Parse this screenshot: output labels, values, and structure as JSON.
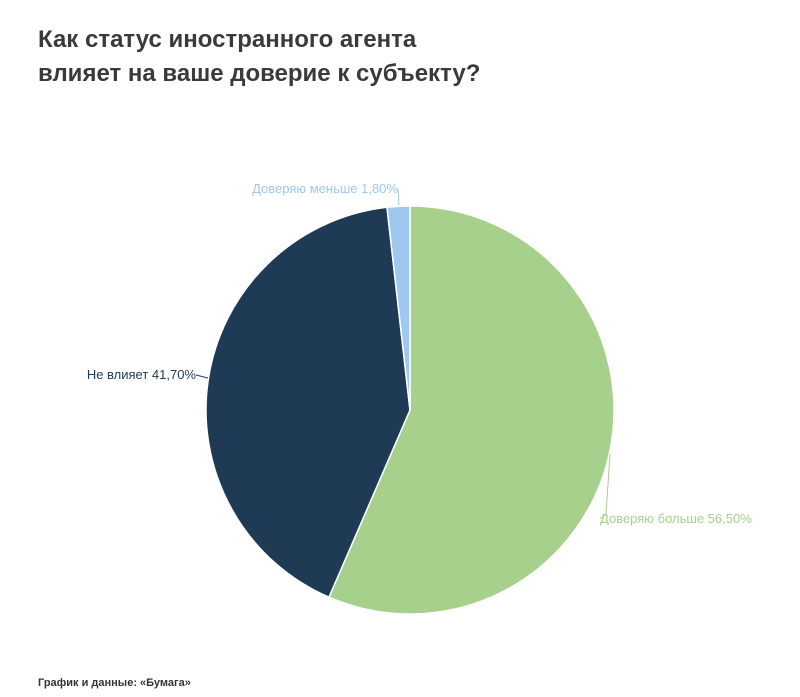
{
  "title": {
    "line1": "Как статус иностранного агента",
    "line2": "влияет на ваше доверие к субъекту?"
  },
  "source": "График и данные: «Бумага»",
  "chart_data": {
    "type": "pie",
    "title": "Как статус иностранного агента влияет на ваше доверие к субъекту?",
    "slices": [
      {
        "label": "Доверяю больше 56,50%",
        "name": "Доверяю больше",
        "value": 56.5,
        "color": "#a8d08d"
      },
      {
        "label": "Не влияет 41,70%",
        "name": "Не влияет",
        "value": 41.7,
        "color": "#1f3a55"
      },
      {
        "label": "Доверяю меньше 1,80%",
        "name": "Доверяю меньше",
        "value": 1.8,
        "color": "#9ec8ef"
      }
    ]
  }
}
